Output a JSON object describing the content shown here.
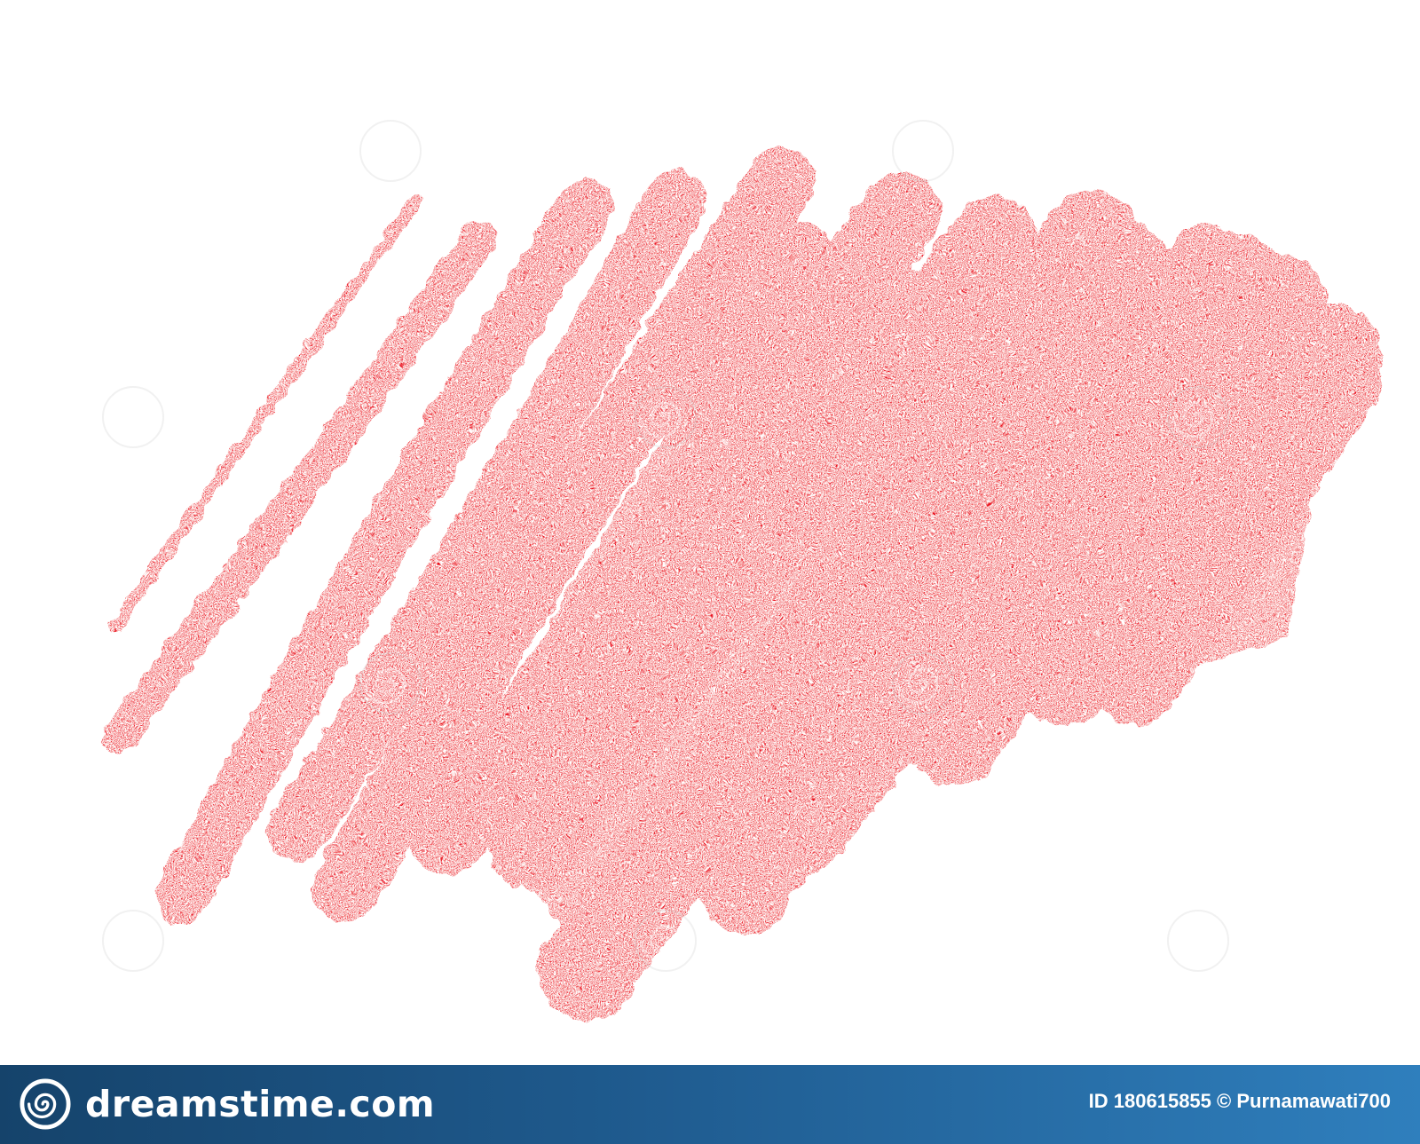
{
  "image": {
    "background_color": "#ffffff",
    "stroke_color": "#e8000b"
  },
  "watermark": {
    "brand": "dreamstime.com",
    "icon": "spiral-icon"
  },
  "footer": {
    "brand_icon": "spiral-logo-icon",
    "brand_name": "dreamstime.com",
    "image_id": "ID 180615855",
    "author": "© Purnamawati700",
    "background_colors": [
      "#15436b",
      "#2f7fbd"
    ]
  }
}
